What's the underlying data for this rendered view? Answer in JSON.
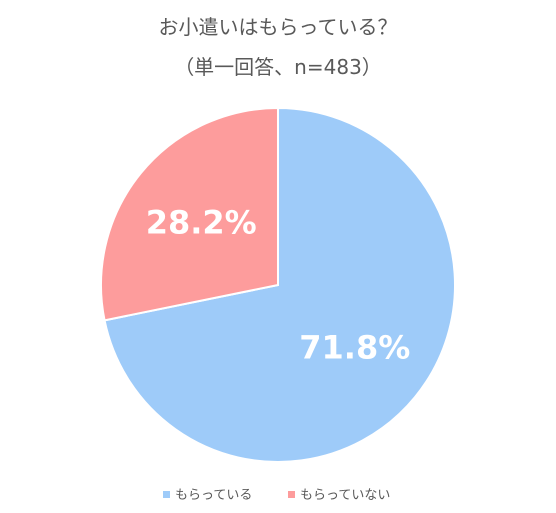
{
  "chart_data": {
    "type": "pie",
    "title": "お小遣いはもらっている？",
    "subtitle": "（単一回答、n=483）",
    "categories": [
      "もらっている",
      "もらっていない"
    ],
    "values": [
      71.8,
      28.2
    ],
    "labels": [
      "71.8%",
      "28.2%"
    ],
    "colors": [
      "#9ecbf9",
      "#fd9c9c"
    ],
    "start_angle_deg": 0,
    "direction": "clockwise",
    "legend_position": "bottom"
  }
}
